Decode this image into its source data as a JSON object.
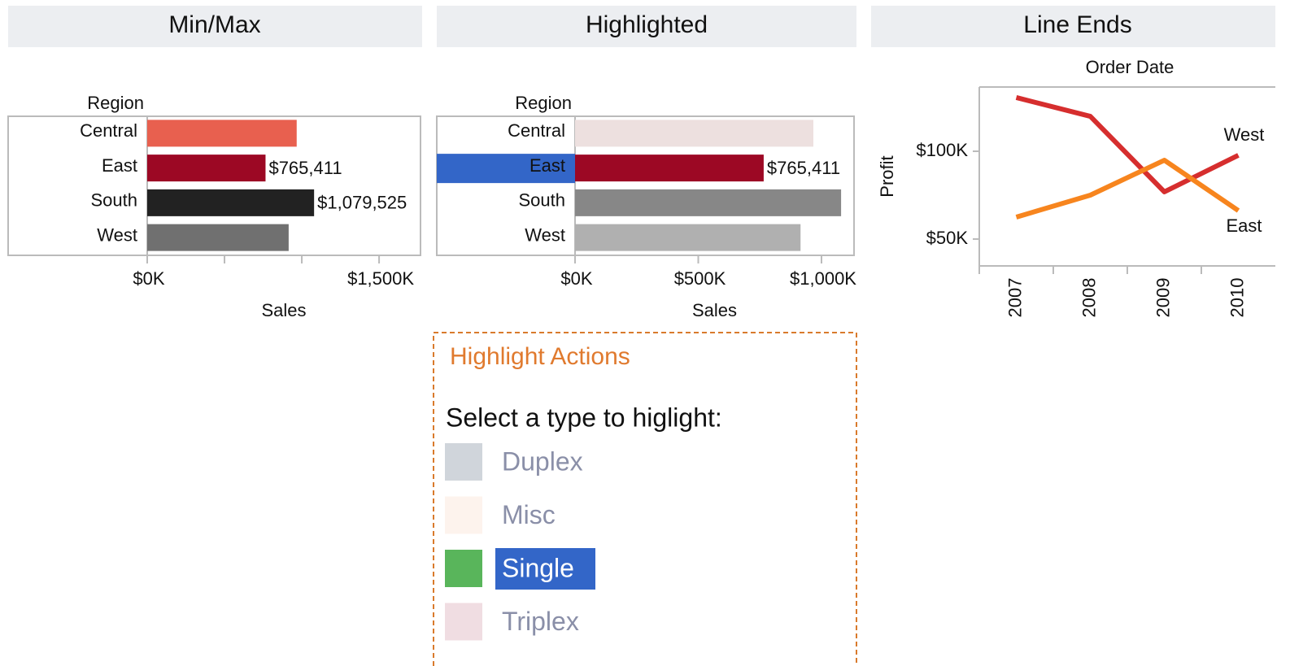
{
  "chart_data": [
    {
      "type": "hbar",
      "title": "Min/Max",
      "category_title": "Region",
      "x_title": "Sales",
      "categories": [
        "Central",
        "East",
        "South",
        "West"
      ],
      "values": [
        967000,
        765411,
        1079525,
        915000
      ],
      "value_labels": [
        null,
        "$765,411",
        "$1,079,525",
        null
      ],
      "colors": [
        "#e8604f",
        "#9c0824",
        "#222222",
        "#707070"
      ],
      "xlim": [
        0,
        1768000
      ],
      "xticks": [
        {
          "value": 0,
          "label": "$0K"
        },
        {
          "value": 500000,
          "label": null
        },
        {
          "value": 1000000,
          "label": null
        },
        {
          "value": 1500000,
          "label": "$1,500K"
        }
      ]
    },
    {
      "type": "hbar",
      "title": "Highlighted",
      "category_title": "Region",
      "x_title": "Sales",
      "categories": [
        "Central",
        "East",
        "South",
        "West"
      ],
      "values": [
        967000,
        765411,
        1079525,
        915000
      ],
      "value_labels": [
        null,
        "$765,411",
        null,
        null
      ],
      "colors": [
        "#ede0df",
        "#9c0824",
        "#878787",
        "#b0b0b0"
      ],
      "highlight": "East",
      "xlim": [
        0,
        1132000
      ],
      "xticks": [
        {
          "value": 0,
          "label": "$0K"
        },
        {
          "value": 500000,
          "label": "$500K"
        },
        {
          "value": 1000000,
          "label": "$1,000K"
        }
      ]
    },
    {
      "type": "line",
      "title": "Line Ends",
      "x_title": "Order Date",
      "y_title": "Profit",
      "categories": [
        "2007",
        "2008",
        "2009",
        "2010"
      ],
      "series": [
        {
          "name": "West",
          "color": "#d62e2e",
          "values": [
            130600,
            119900,
            76900,
            97700
          ]
        },
        {
          "name": "East",
          "color": "#f7851e",
          "values": [
            62500,
            75000,
            94900,
            66200
          ]
        }
      ],
      "ylim": [
        34700,
        136600
      ],
      "yticks": [
        {
          "value": 50000,
          "label": "$50K"
        },
        {
          "value": 100000,
          "label": "$100K"
        }
      ]
    }
  ],
  "legend": {
    "title": "Highlight Actions",
    "prompt": "Select a type to higlight:",
    "items": [
      {
        "label": "Duplex",
        "color": "#d0d5db"
      },
      {
        "label": "Misc",
        "color": "#fdf3ed"
      },
      {
        "label": "Single",
        "color": "#59b55b"
      },
      {
        "label": "Triplex",
        "color": "#f0dde2"
      }
    ],
    "selected": "Single"
  }
}
